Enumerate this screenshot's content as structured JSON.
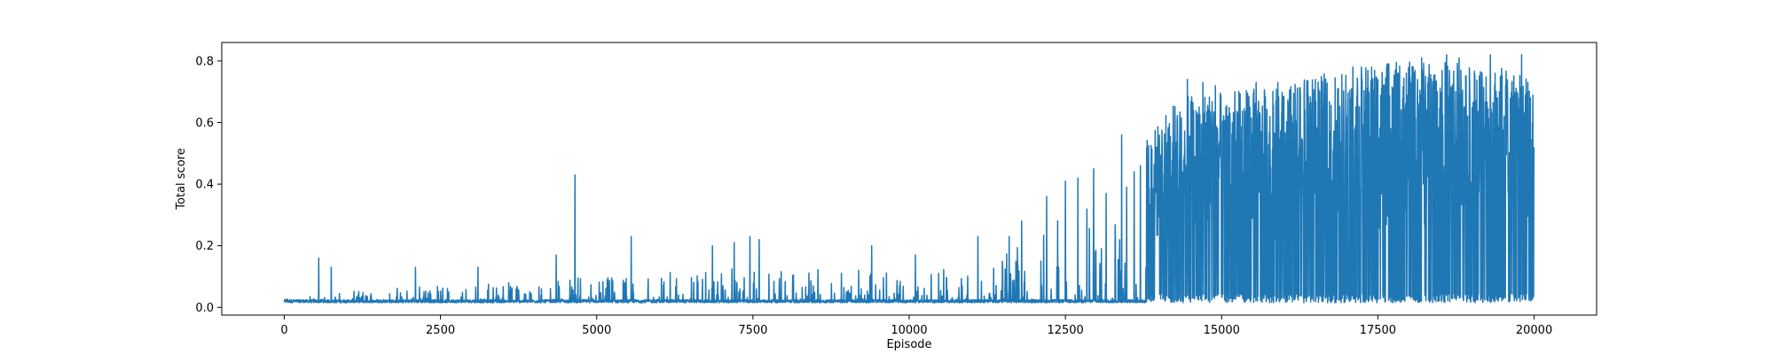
{
  "chart_data": {
    "type": "line",
    "title": "",
    "xlabel": "Episode",
    "ylabel": "Total score",
    "xlim": [
      -1000,
      21000
    ],
    "ylim": [
      -0.025,
      0.86
    ],
    "xticks": [
      0,
      2500,
      5000,
      7500,
      10000,
      12500,
      15000,
      17500,
      20000
    ],
    "xtick_labels": [
      "0",
      "2500",
      "5000",
      "7500",
      "10000",
      "12500",
      "15000",
      "17500",
      "20000"
    ],
    "yticks": [
      0.0,
      0.2,
      0.4,
      0.6,
      0.8
    ],
    "ytick_labels": [
      "0.0",
      "0.2",
      "0.4",
      "0.6",
      "0.8"
    ],
    "grid": false,
    "legend": "none",
    "series": [
      {
        "color": "#1f77b4",
        "n_episodes": 20000,
        "baseline": 0.015,
        "envelope": [
          {
            "x": 0,
            "upper": 0.03
          },
          {
            "x": 2500,
            "upper": 0.08
          },
          {
            "x": 5000,
            "upper": 0.1
          },
          {
            "x": 7500,
            "upper": 0.13
          },
          {
            "x": 10000,
            "upper": 0.12
          },
          {
            "x": 11500,
            "upper": 0.17
          },
          {
            "x": 12500,
            "upper": 0.3
          },
          {
            "x": 13500,
            "upper": 0.42
          },
          {
            "x": 13800,
            "upper": 0.55
          },
          {
            "x": 14400,
            "upper": 0.7
          },
          {
            "x": 15000,
            "upper": 0.7
          },
          {
            "x": 16000,
            "upper": 0.72
          },
          {
            "x": 17000,
            "upper": 0.78
          },
          {
            "x": 18000,
            "upper": 0.8
          },
          {
            "x": 20000,
            "upper": 0.8
          }
        ],
        "spikes": [
          {
            "x": 550,
            "y": 0.16
          },
          {
            "x": 750,
            "y": 0.13
          },
          {
            "x": 2100,
            "y": 0.13
          },
          {
            "x": 3100,
            "y": 0.13
          },
          {
            "x": 4350,
            "y": 0.17
          },
          {
            "x": 4650,
            "y": 0.43
          },
          {
            "x": 5550,
            "y": 0.23
          },
          {
            "x": 6850,
            "y": 0.2
          },
          {
            "x": 7200,
            "y": 0.21
          },
          {
            "x": 7450,
            "y": 0.23
          },
          {
            "x": 7600,
            "y": 0.22
          },
          {
            "x": 9400,
            "y": 0.2
          },
          {
            "x": 10100,
            "y": 0.17
          },
          {
            "x": 11100,
            "y": 0.23
          },
          {
            "x": 11600,
            "y": 0.23
          },
          {
            "x": 11800,
            "y": 0.28
          },
          {
            "x": 12200,
            "y": 0.36
          },
          {
            "x": 12500,
            "y": 0.41
          },
          {
            "x": 12700,
            "y": 0.42
          },
          {
            "x": 12950,
            "y": 0.45
          },
          {
            "x": 13150,
            "y": 0.37
          },
          {
            "x": 13400,
            "y": 0.56
          },
          {
            "x": 13600,
            "y": 0.44
          },
          {
            "x": 13700,
            "y": 0.46
          },
          {
            "x": 14450,
            "y": 0.74
          },
          {
            "x": 14700,
            "y": 0.73
          },
          {
            "x": 14900,
            "y": 0.72
          },
          {
            "x": 15550,
            "y": 0.73
          },
          {
            "x": 15900,
            "y": 0.73
          },
          {
            "x": 16500,
            "y": 0.74
          },
          {
            "x": 17100,
            "y": 0.78
          },
          {
            "x": 17650,
            "y": 0.79
          },
          {
            "x": 18200,
            "y": 0.81
          },
          {
            "x": 18600,
            "y": 0.82
          },
          {
            "x": 18800,
            "y": 0.81
          },
          {
            "x": 19300,
            "y": 0.82
          },
          {
            "x": 19800,
            "y": 0.82
          }
        ]
      }
    ]
  }
}
